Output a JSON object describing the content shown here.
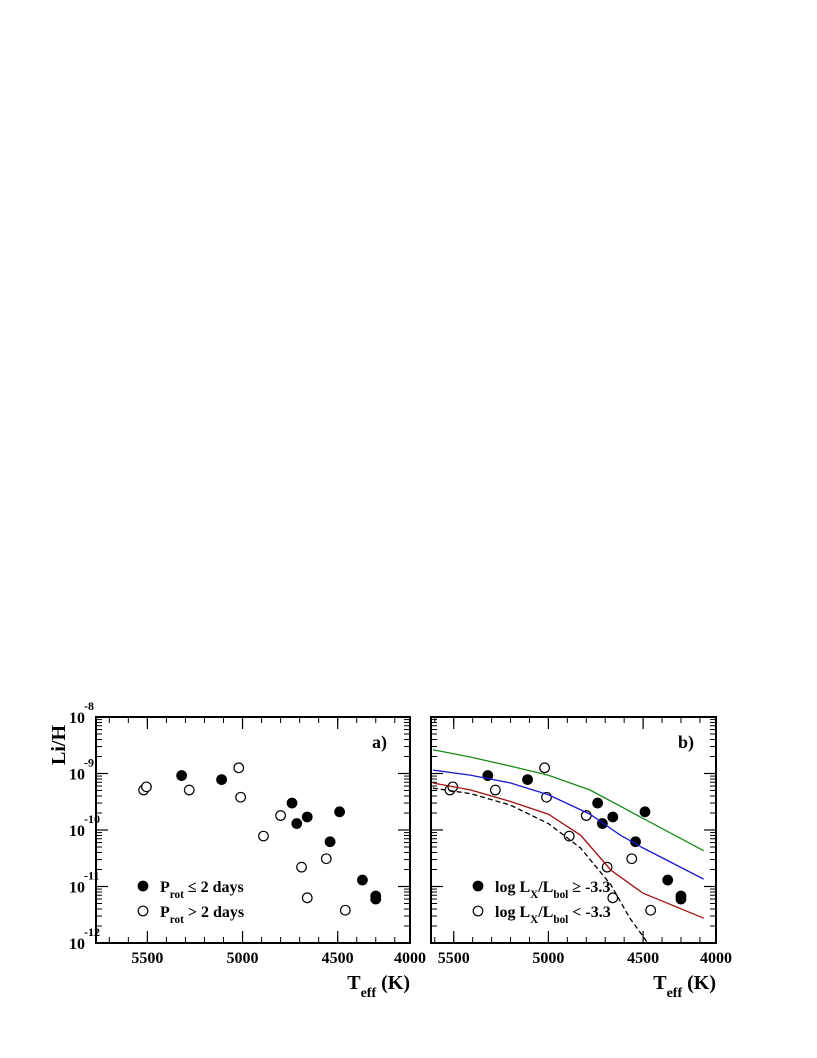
{
  "chart_data": [
    {
      "type": "scatter",
      "panel_label": "a)",
      "ylabel": "Li/H",
      "xlabel": [
        {
          "text": "T"
        },
        {
          "text": "eff",
          "sub": true
        },
        {
          "text": " (K)"
        }
      ],
      "xlim": [
        5770,
        4120
      ],
      "xticks": [
        5500,
        5000,
        4500,
        4000
      ],
      "ylim": [
        1e-12,
        1e-08
      ],
      "ylog": true,
      "yticks": [
        {
          "value": 1e-12,
          "label": "10",
          "exponent": "-12"
        },
        {
          "value": 1e-11,
          "label": "10",
          "exponent": "-11"
        },
        {
          "value": 1e-10,
          "label": "10",
          "exponent": "-10"
        },
        {
          "value": 1e-09,
          "label": "10",
          "exponent": "-9"
        },
        {
          "value": 1e-08,
          "label": "10",
          "exponent": "-8"
        }
      ],
      "legend": "lower left",
      "series": [
        {
          "name": [
            {
              "text": "P"
            },
            {
              "text": "rot",
              "sub": true
            },
            {
              "text": " ≤ 2 days"
            }
          ],
          "marker": "filled",
          "color": "#000000",
          "x": [
            5320,
            5110,
            4740,
            4715,
            4660,
            4490,
            4540,
            4370,
            4300,
            4300
          ],
          "values": [
            9.2e-10,
            7.8e-10,
            3e-10,
            1.3e-10,
            1.7e-10,
            2.1e-10,
            6.2e-11,
            1.3e-11,
            6.8e-12,
            6e-12
          ]
        },
        {
          "name": [
            {
              "text": "P"
            },
            {
              "text": "rot",
              "sub": true
            },
            {
              "text": " > 2 days"
            }
          ],
          "marker": "open",
          "color": "#000000",
          "x": [
            5520,
            5505,
            5280,
            5020,
            5010,
            4890,
            4800,
            4690,
            4660,
            4560,
            4460
          ],
          "values": [
            5.1e-10,
            5.8e-10,
            5.1e-10,
            1.26e-09,
            3.8e-10,
            7.8e-11,
            1.8e-10,
            2.2e-11,
            6.3e-12,
            3.1e-11,
            3.8e-12
          ]
        }
      ]
    },
    {
      "type": "scatter",
      "panel_label": "b)",
      "xlabel": [
        {
          "text": "T"
        },
        {
          "text": "eff",
          "sub": true
        },
        {
          "text": " (K)"
        }
      ],
      "xlim": [
        5620,
        4115
      ],
      "xticks": [
        5500,
        5000,
        4500,
        4000
      ],
      "ylim": [
        1e-12,
        1e-08
      ],
      "ylog": true,
      "yticks": [
        1e-12,
        1e-11,
        1e-10,
        1e-09,
        1e-08
      ],
      "legend": "lower left",
      "series": [
        {
          "name": [
            {
              "text": "log L"
            },
            {
              "text": "X",
              "sub": true
            },
            {
              "text": "/L"
            },
            {
              "text": "bol",
              "sub": true
            },
            {
              "text": " ≥ -3.3"
            }
          ],
          "marker": "filled",
          "color": "#000000",
          "x": [
            5320,
            5110,
            4740,
            4715,
            4660,
            4490,
            4540,
            4370,
            4300,
            4300
          ],
          "values": [
            9.2e-10,
            7.8e-10,
            3e-10,
            1.3e-10,
            1.7e-10,
            2.1e-10,
            6.2e-11,
            1.3e-11,
            6.8e-12,
            6e-12
          ]
        },
        {
          "name": [
            {
              "text": "log L"
            },
            {
              "text": "X",
              "sub": true
            },
            {
              "text": "/L"
            },
            {
              "text": "bol",
              "sub": true
            },
            {
              "text": " < -3.3"
            }
          ],
          "marker": "open",
          "color": "#000000",
          "x": [
            5520,
            5505,
            5280,
            5020,
            5010,
            4890,
            4800,
            4690,
            4660,
            4560,
            4460
          ],
          "values": [
            5.1e-10,
            5.8e-10,
            5.1e-10,
            1.26e-09,
            3.8e-10,
            7.8e-11,
            1.8e-10,
            2.2e-11,
            6.3e-12,
            3.1e-11,
            3.8e-12
          ]
        },
        {
          "type": "line",
          "color": "#1a8a1a",
          "x": [
            5610,
            5410,
            5200,
            5000,
            4780,
            4500,
            4180
          ],
          "values": [
            2.63e-09,
            1.95e-09,
            1.35e-09,
            9.3e-10,
            5.1e-10,
            1.6e-10,
            4.3e-11
          ]
        },
        {
          "type": "line",
          "color": "#1a1acc",
          "x": [
            5610,
            5410,
            5200,
            5000,
            4780,
            4620,
            4500,
            4180
          ],
          "values": [
            1.15e-09,
            9.3e-10,
            6.8e-10,
            4.2e-10,
            1.9e-10,
            8.1e-11,
            4.8e-11,
            1.35e-11
          ]
        },
        {
          "type": "line",
          "color": "#a01010",
          "x": [
            5610,
            5410,
            5200,
            5000,
            4830,
            4670,
            4500,
            4180
          ],
          "values": [
            6.8e-10,
            5.1e-10,
            3.2e-10,
            1.9e-10,
            8.1e-11,
            1.95e-11,
            7.6e-12,
            2.75e-12
          ]
        },
        {
          "type": "line",
          "dashed": true,
          "color": "#000000",
          "x": [
            5610,
            5410,
            5200,
            5000,
            4830,
            4670,
            4570,
            4475
          ],
          "values": [
            5.5e-10,
            4.4e-10,
            2.75e-10,
            1.3e-10,
            4.8e-11,
            1.07e-11,
            2.75e-12,
            1e-12
          ]
        }
      ]
    }
  ]
}
